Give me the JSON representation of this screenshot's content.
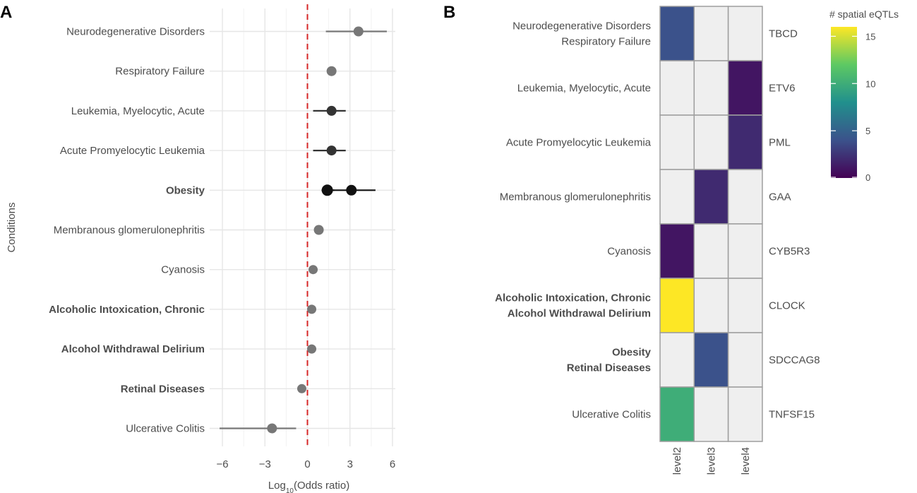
{
  "panels": {
    "a": "A",
    "b": "B"
  },
  "chart_data": [
    {
      "type": "scatter",
      "subtype": "forest-plot",
      "panel": "A",
      "xlabel_base": "Log",
      "xlabel_sub": "10",
      "xlabel_rest": "(Odds ratio)",
      "ylabel": "Conditions",
      "xlim": [
        -6.9,
        6.2
      ],
      "xticks": [
        -6,
        -3,
        0,
        3,
        6
      ],
      "reference_line": 0,
      "reference_color": "#d62728",
      "conditions": [
        {
          "label": "Neurodegenerative Disorders",
          "bold": false,
          "points": [
            {
              "x": 3.6,
              "lo": 1.3,
              "hi": 5.6,
              "size": 7,
              "color": "#777777"
            }
          ]
        },
        {
          "label": "Respiratory Failure",
          "bold": false,
          "points": [
            {
              "x": 1.7,
              "lo": null,
              "hi": null,
              "size": 7,
              "color": "#777777"
            }
          ]
        },
        {
          "label": "Leukemia, Myelocytic, Acute",
          "bold": false,
          "points": [
            {
              "x": 1.7,
              "lo": 0.4,
              "hi": 2.7,
              "size": 7,
              "color": "#333333"
            }
          ]
        },
        {
          "label": "Acute Promyelocytic Leukemia",
          "bold": false,
          "points": [
            {
              "x": 1.7,
              "lo": 0.4,
              "hi": 2.7,
              "size": 7,
              "color": "#333333"
            }
          ]
        },
        {
          "label": "Obesity",
          "bold": true,
          "points": [
            {
              "x": 1.4,
              "lo": 1.0,
              "hi": 1.9,
              "size": 8,
              "color": "#111111"
            },
            {
              "x": 3.1,
              "lo": 1.6,
              "hi": 4.8,
              "size": 7.5,
              "color": "#111111"
            }
          ]
        },
        {
          "label": "Membranous glomerulonephritis",
          "bold": false,
          "points": [
            {
              "x": 0.8,
              "lo": null,
              "hi": null,
              "size": 7,
              "color": "#777777"
            }
          ]
        },
        {
          "label": "Cyanosis",
          "bold": false,
          "points": [
            {
              "x": 0.4,
              "lo": null,
              "hi": null,
              "size": 6.5,
              "color": "#777777"
            }
          ]
        },
        {
          "label": "Alcoholic Intoxication, Chronic",
          "bold": true,
          "points": [
            {
              "x": 0.3,
              "lo": null,
              "hi": null,
              "size": 6.5,
              "color": "#777777"
            }
          ]
        },
        {
          "label": "Alcohol Withdrawal Delirium",
          "bold": true,
          "points": [
            {
              "x": 0.3,
              "lo": null,
              "hi": null,
              "size": 6.5,
              "color": "#777777"
            }
          ]
        },
        {
          "label": "Retinal Diseases",
          "bold": true,
          "points": [
            {
              "x": -0.4,
              "lo": null,
              "hi": null,
              "size": 6.5,
              "color": "#777777"
            }
          ]
        },
        {
          "label": "Ulcerative Colitis",
          "bold": false,
          "points": [
            {
              "x": -2.5,
              "lo": -6.2,
              "hi": -0.8,
              "size": 7,
              "color": "#777777"
            }
          ]
        }
      ]
    },
    {
      "type": "heatmap",
      "panel": "B",
      "columns": [
        "level2",
        "level3",
        "level4"
      ],
      "rows": [
        {
          "conditions": [
            {
              "label": "Neurodegenerative Disorders",
              "bold": false
            },
            {
              "label": "Respiratory Failure",
              "bold": false
            }
          ],
          "gene": "TBCD",
          "values": [
            4,
            null,
            null
          ]
        },
        {
          "conditions": [
            {
              "label": "Leukemia, Myelocytic, Acute",
              "bold": false
            }
          ],
          "gene": "ETV6",
          "values": [
            null,
            null,
            1
          ]
        },
        {
          "conditions": [
            {
              "label": "Acute Promyelocytic Leukemia",
              "bold": false
            }
          ],
          "gene": "PML",
          "values": [
            null,
            null,
            2
          ]
        },
        {
          "conditions": [
            {
              "label": "Membranous glomerulonephritis",
              "bold": false
            }
          ],
          "gene": "GAA",
          "values": [
            null,
            2,
            null
          ]
        },
        {
          "conditions": [
            {
              "label": "Cyanosis",
              "bold": false
            }
          ],
          "gene": "CYB5R3",
          "values": [
            1,
            null,
            null
          ]
        },
        {
          "conditions": [
            {
              "label": "Alcoholic Intoxication, Chronic",
              "bold": true
            },
            {
              "label": "Alcohol Withdrawal Delirium",
              "bold": true
            }
          ],
          "gene": "CLOCK",
          "values": [
            16,
            null,
            null
          ]
        },
        {
          "conditions": [
            {
              "label": "Obesity",
              "bold": true
            },
            {
              "label": "Retinal Diseases",
              "bold": true
            }
          ],
          "gene": "SDCCAG8",
          "values": [
            null,
            4,
            null
          ]
        },
        {
          "conditions": [
            {
              "label": "Ulcerative Colitis",
              "bold": false
            }
          ],
          "gene": "TNFSF15",
          "values": [
            10,
            null,
            null
          ]
        }
      ],
      "empty_color": "#efefef",
      "legend": {
        "title": "# spatial eQTLs",
        "range": [
          0,
          16
        ],
        "ticks": [
          0,
          5,
          10,
          15
        ],
        "stops": [
          "#440154",
          "#3b528b",
          "#21908d",
          "#5dc963",
          "#fde725"
        ]
      }
    }
  ]
}
